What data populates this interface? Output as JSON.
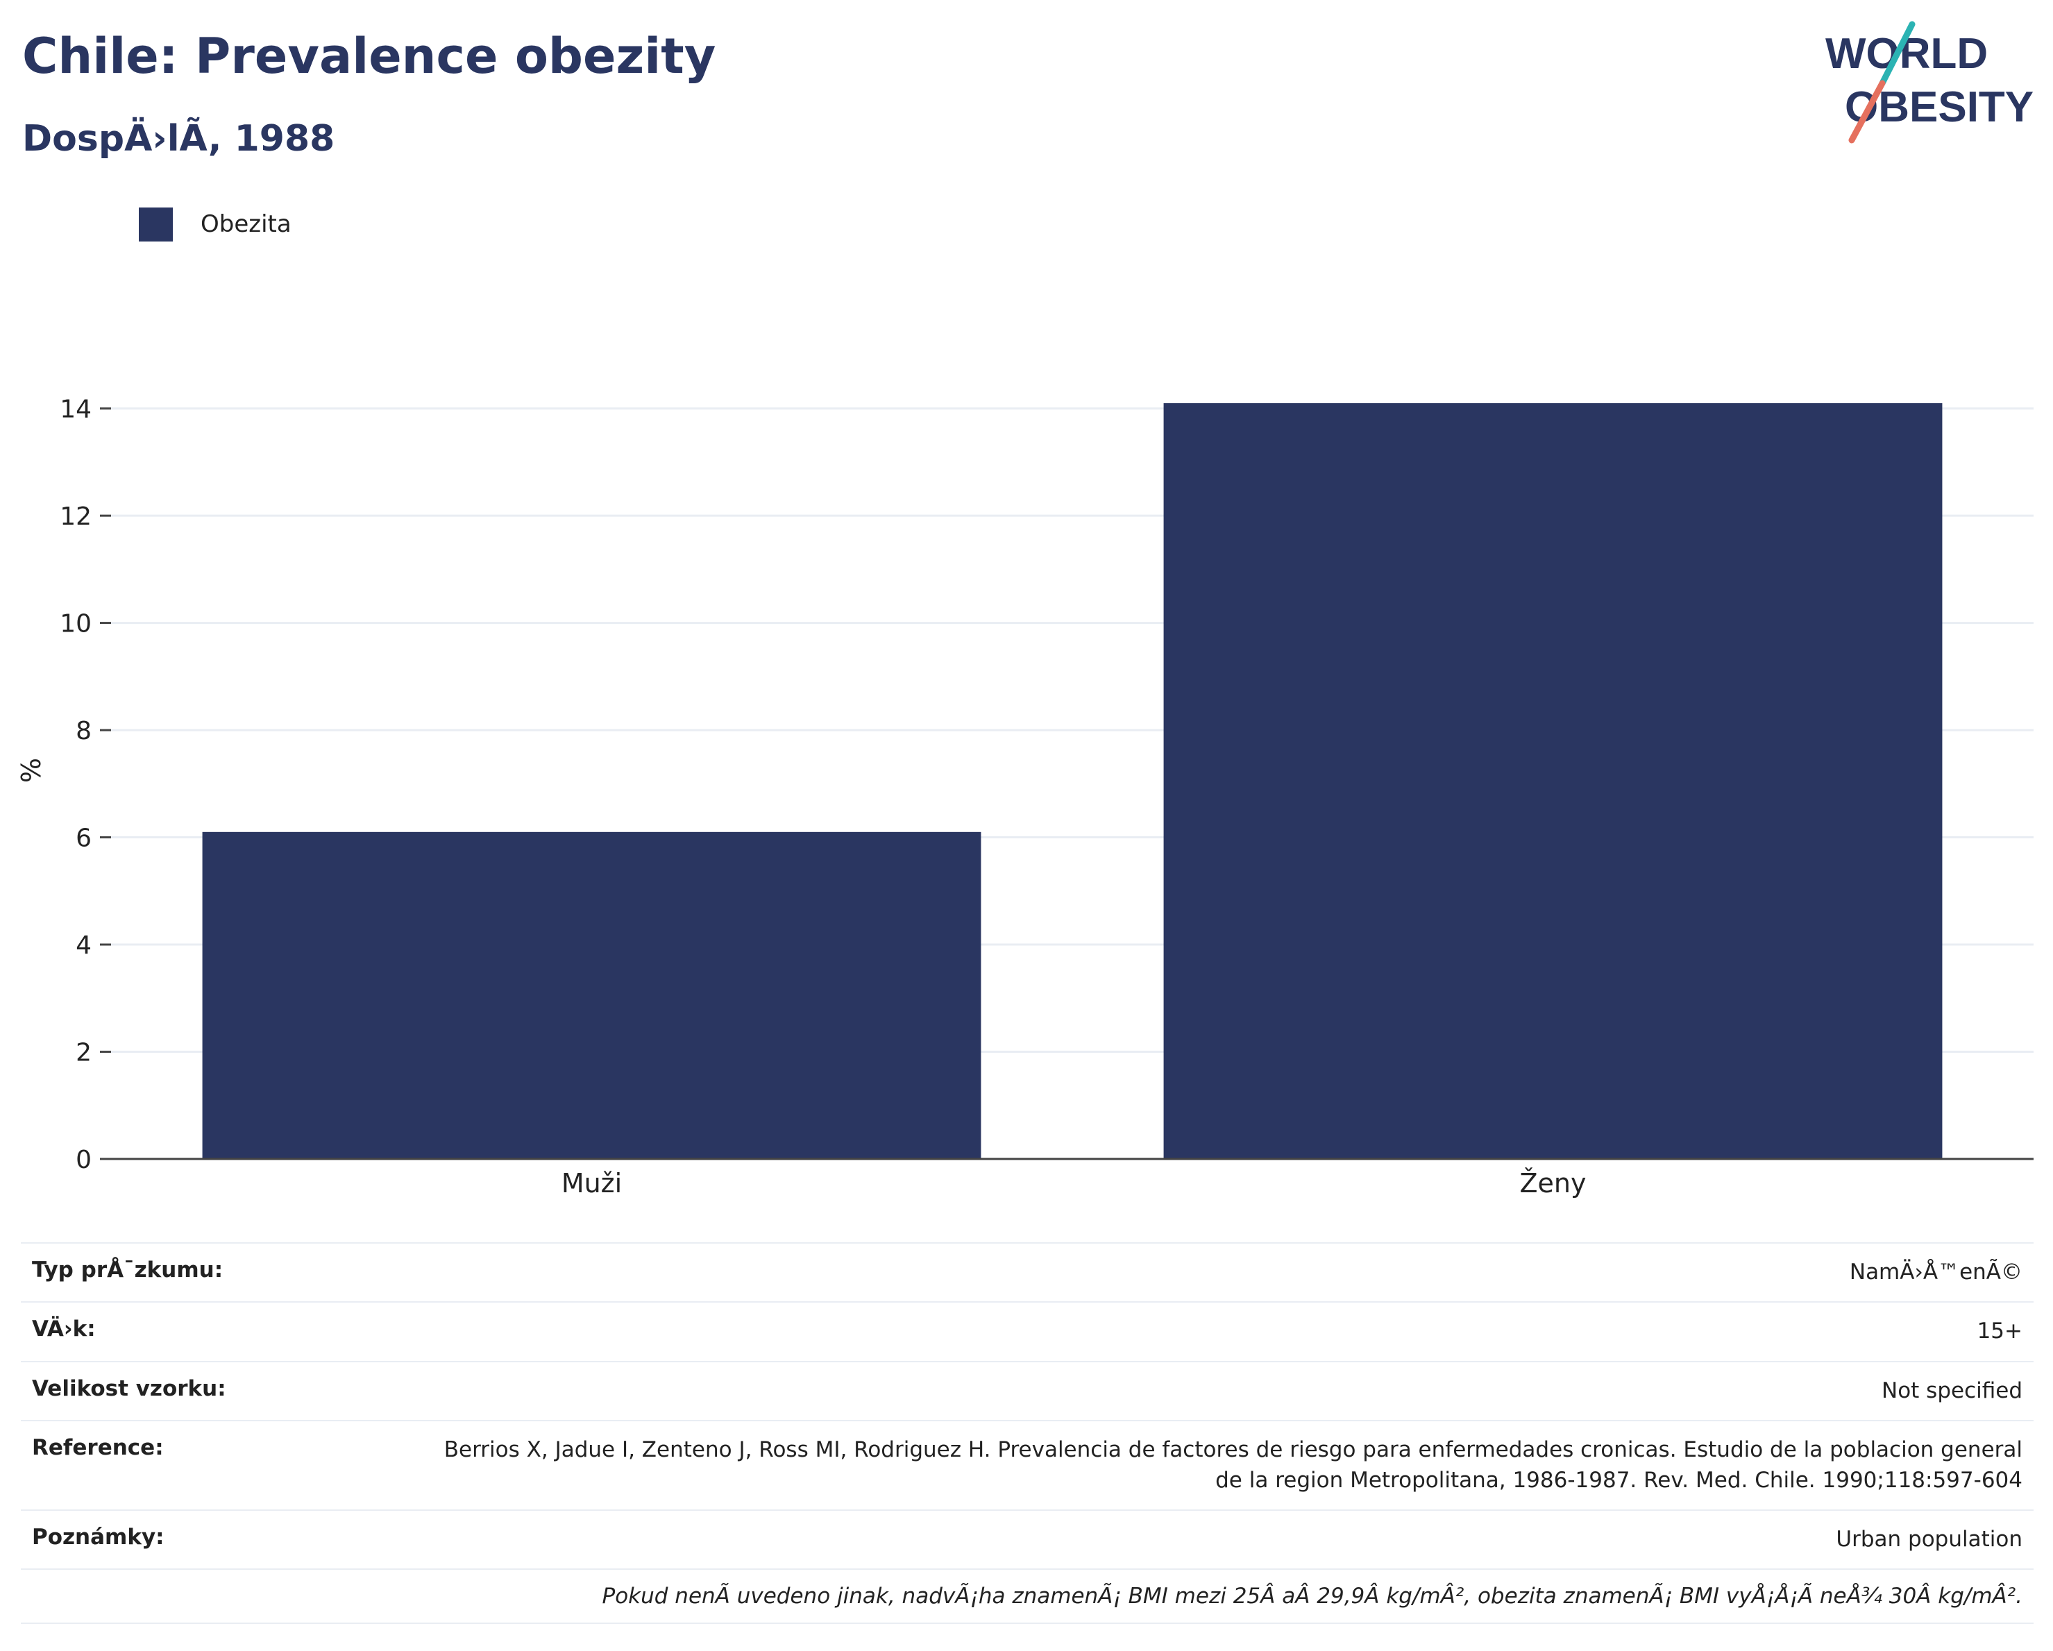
{
  "header": {
    "title": "Chile: Prevalence obezity",
    "subtitle": "DospÄ›lÃ­, 1988"
  },
  "logo": {
    "line1": "WORLD",
    "line2": "OBESITY"
  },
  "colors": {
    "bar": "#2a3661",
    "accent_teal": "#2bb3b3",
    "accent_coral": "#e5705e"
  },
  "chart_data": {
    "type": "bar",
    "categories": [
      "Muži",
      "Ženy"
    ],
    "series": [
      {
        "name": "Obezita",
        "values": [
          6.1,
          14.1
        ]
      }
    ],
    "ylabel": "%",
    "xlabel": "",
    "ylim": [
      0,
      14.5
    ],
    "yticks": [
      "0",
      "2",
      "4",
      "6",
      "8",
      "10",
      "12",
      "14"
    ],
    "grid": true,
    "legend_position": "top-left"
  },
  "info": {
    "rows": [
      {
        "key": "Typ prÅ¯zkumu:",
        "value": "NamÄ›Å™enÃ©"
      },
      {
        "key": "VÄ›k:",
        "value": "15+"
      },
      {
        "key": "Velikost vzorku:",
        "value": "Not specified"
      },
      {
        "key": "Reference:",
        "value": "Berrios X, Jadue I, Zenteno J, Ross MI, Rodriguez H. Prevalencia de factores de riesgo para enfermedades cronicas. Estudio de la poblacion general de la region Metropolitana, 1986-1987. Rev. Med. Chile. 1990;118:597-604"
      },
      {
        "key": "Poznámky:",
        "value": "Urban population"
      }
    ],
    "note": "Pokud nenÃ­ uvedeno jinak, nadvÃ¡ha znamenÃ¡ BMI mezi 25Â aÂ 29,9Â kg/mÂ², obezita znamenÃ¡ BMI vyÅ¡Å¡Ã­ neÅ¾ 30Â kg/mÂ²."
  }
}
